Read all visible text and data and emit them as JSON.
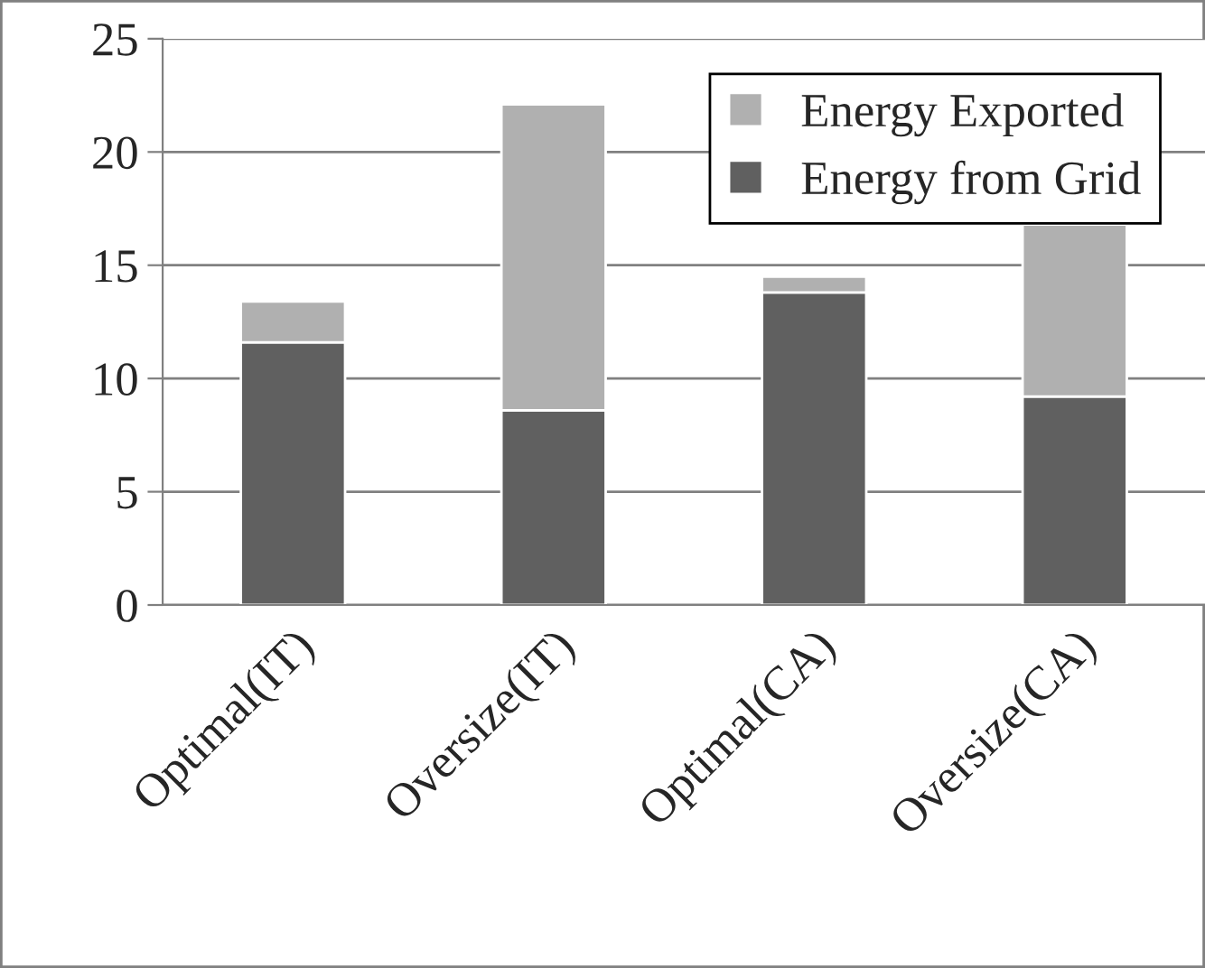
{
  "chart_data": {
    "type": "bar",
    "stacked": true,
    "categories": [
      "Optimal(IT)",
      "Oversize(IT)",
      "Optimal(CA)",
      "Oversize(CA)"
    ],
    "series": [
      {
        "name": "Energy from Grid",
        "color": "#606060",
        "values": [
          11.6,
          8.6,
          13.8,
          9.2
        ]
      },
      {
        "name": "Energy Exported",
        "color": "#b0b0b0",
        "values": [
          1.8,
          13.5,
          0.7,
          7.6
        ]
      }
    ],
    "ylim": [
      0,
      25
    ],
    "yticks": [
      0,
      5,
      10,
      15,
      20,
      25
    ],
    "grid": "y",
    "legend": "top right"
  }
}
